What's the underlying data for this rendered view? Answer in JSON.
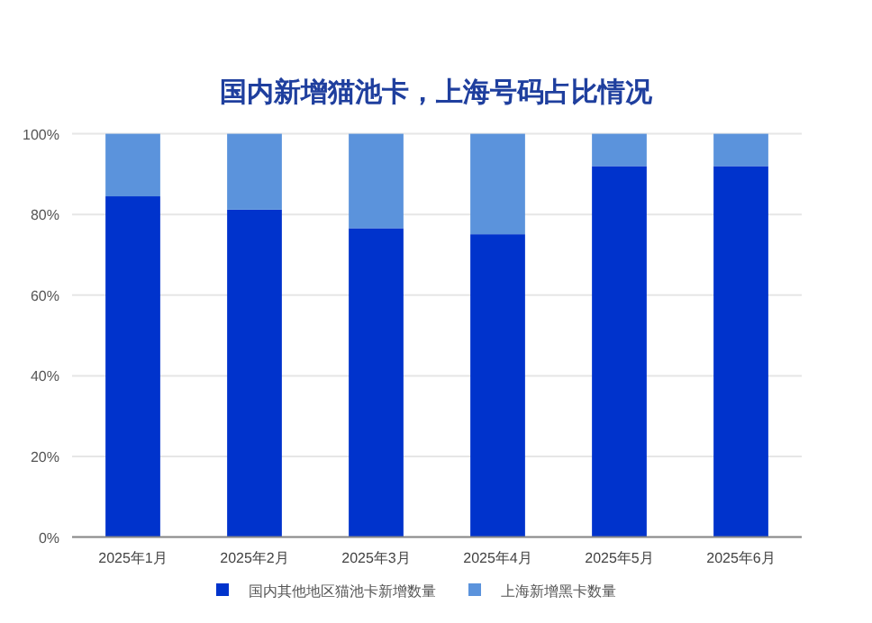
{
  "chart_data": {
    "type": "bar",
    "title": "国内新增猫池卡，上海号码占比情况",
    "stacked": true,
    "categories": [
      "2025年1月",
      "2025年2月",
      "2025年3月",
      "2025年4月",
      "2025年5月",
      "2025年6月"
    ],
    "series": [
      {
        "name": "国内其他地区猫池卡新增数量",
        "color": "#0033cc",
        "values": [
          84.5,
          81.2,
          76.6,
          75.1,
          92.0,
          92.0
        ]
      },
      {
        "name": "上海新增黑卡数量",
        "color": "#5b93dc",
        "values": [
          15.5,
          18.8,
          23.4,
          24.9,
          8.0,
          8.0
        ]
      }
    ],
    "ylim": [
      0,
      100
    ],
    "yticks": [
      {
        "value": 0,
        "label": "0%"
      },
      {
        "value": 20,
        "label": "20%"
      },
      {
        "value": 40,
        "label": "40%"
      },
      {
        "value": 60,
        "label": "60%"
      },
      {
        "value": 80,
        "label": "80%"
      },
      {
        "value": 100,
        "label": "100%"
      }
    ],
    "grid": "y",
    "legend": "bottom"
  }
}
